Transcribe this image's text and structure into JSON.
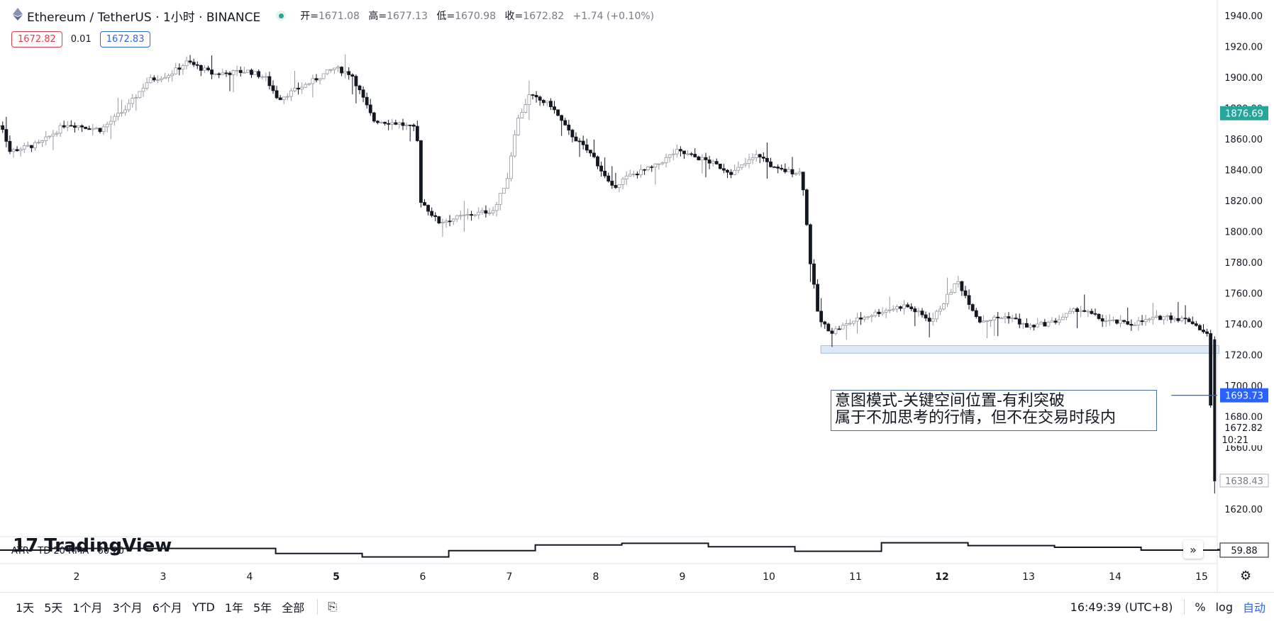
{
  "header": {
    "symbol": "Ethereum / TetherUS · 1小时 · BINANCE",
    "open_label": "开=",
    "open": "1671.08",
    "high_label": "高=",
    "high": "1677.13",
    "low_label": "低=",
    "low": "1670.98",
    "close_label": "收=",
    "close": "1672.82",
    "change": "+1.74 (+0.10%)"
  },
  "bidask": {
    "bid": "1672.82",
    "spread": "0.01",
    "ask": "1672.83"
  },
  "annotation": {
    "line1": "意图模式-关键空间位置-有利突破",
    "line2": "属于不加思考的行情，但不在交易时段内"
  },
  "logo": "TradingView",
  "indicator": {
    "label": "ATR · TD 20 RMA · 60:20",
    "value": "59.88"
  },
  "bottom": {
    "ranges": [
      "1天",
      "5天",
      "1个月",
      "3个月",
      "6个月",
      "YTD",
      "1年",
      "5年",
      "全部"
    ],
    "time": "16:49:39 (UTC+8)",
    "percent": "%",
    "log": "log",
    "auto": "自动"
  },
  "colors": {
    "accent": "#2962ff",
    "bull": "#26a69a",
    "bear": "#f23645",
    "candle_up": "#ffffff",
    "candle_down": "#131722"
  },
  "chart_data": {
    "type": "candlestick",
    "title": "Ethereum / TetherUS · 1小时 · BINANCE",
    "y_ticks": [
      "1620.00",
      "1640.00",
      "1660.00",
      "1680.00",
      "1700.00",
      "1720.00",
      "1740.00",
      "1760.00",
      "1780.00",
      "1800.00",
      "1820.00",
      "1840.00",
      "1860.00",
      "1880.00",
      "1900.00",
      "1920.00",
      "1940.00"
    ],
    "ylim": [
      1610,
      1945
    ],
    "x_ticks": [
      {
        "label": "2",
        "day": 2,
        "bold": false
      },
      {
        "label": "3",
        "day": 3,
        "bold": false
      },
      {
        "label": "4",
        "day": 4,
        "bold": false
      },
      {
        "label": "5",
        "day": 5,
        "bold": true
      },
      {
        "label": "6",
        "day": 6,
        "bold": false
      },
      {
        "label": "7",
        "day": 7,
        "bold": false
      },
      {
        "label": "8",
        "day": 8,
        "bold": false
      },
      {
        "label": "9",
        "day": 9,
        "bold": false
      },
      {
        "label": "10",
        "day": 10,
        "bold": false
      },
      {
        "label": "11",
        "day": 11,
        "bold": false
      },
      {
        "label": "12",
        "day": 12,
        "bold": true
      },
      {
        "label": "13",
        "day": 13,
        "bold": false
      },
      {
        "label": "14",
        "day": 14,
        "bold": false
      },
      {
        "label": "15",
        "day": 15,
        "bold": false
      }
    ],
    "price_path": [
      {
        "day": 1.0,
        "price": 1866
      },
      {
        "day": 1.15,
        "price": 1870
      },
      {
        "day": 1.25,
        "price": 1852
      },
      {
        "day": 1.6,
        "price": 1857
      },
      {
        "day": 1.9,
        "price": 1870
      },
      {
        "day": 2.3,
        "price": 1866
      },
      {
        "day": 2.6,
        "price": 1880
      },
      {
        "day": 2.85,
        "price": 1898
      },
      {
        "day": 3.1,
        "price": 1902
      },
      {
        "day": 3.3,
        "price": 1910
      },
      {
        "day": 3.6,
        "price": 1902
      },
      {
        "day": 4.0,
        "price": 1904
      },
      {
        "day": 4.2,
        "price": 1900
      },
      {
        "day": 4.35,
        "price": 1886
      },
      {
        "day": 4.7,
        "price": 1896
      },
      {
        "day": 5.0,
        "price": 1906
      },
      {
        "day": 5.2,
        "price": 1902
      },
      {
        "day": 5.45,
        "price": 1872
      },
      {
        "day": 5.75,
        "price": 1870
      },
      {
        "day": 5.95,
        "price": 1866
      },
      {
        "day": 6.0,
        "price": 1820
      },
      {
        "day": 6.2,
        "price": 1806
      },
      {
        "day": 6.5,
        "price": 1810
      },
      {
        "day": 6.85,
        "price": 1814
      },
      {
        "day": 7.0,
        "price": 1835
      },
      {
        "day": 7.1,
        "price": 1870
      },
      {
        "day": 7.25,
        "price": 1888
      },
      {
        "day": 7.5,
        "price": 1882
      },
      {
        "day": 7.7,
        "price": 1865
      },
      {
        "day": 8.0,
        "price": 1848
      },
      {
        "day": 8.2,
        "price": 1828
      },
      {
        "day": 8.4,
        "price": 1836
      },
      {
        "day": 8.7,
        "price": 1842
      },
      {
        "day": 8.95,
        "price": 1852
      },
      {
        "day": 9.3,
        "price": 1846
      },
      {
        "day": 9.6,
        "price": 1838
      },
      {
        "day": 9.9,
        "price": 1850
      },
      {
        "day": 10.1,
        "price": 1840
      },
      {
        "day": 10.4,
        "price": 1838
      },
      {
        "day": 10.5,
        "price": 1780
      },
      {
        "day": 10.6,
        "price": 1742
      },
      {
        "day": 10.75,
        "price": 1735
      },
      {
        "day": 11.0,
        "price": 1742
      },
      {
        "day": 11.3,
        "price": 1748
      },
      {
        "day": 11.6,
        "price": 1752
      },
      {
        "day": 11.9,
        "price": 1742
      },
      {
        "day": 12.2,
        "price": 1768
      },
      {
        "day": 12.45,
        "price": 1742
      },
      {
        "day": 12.8,
        "price": 1745
      },
      {
        "day": 13.0,
        "price": 1738
      },
      {
        "day": 13.3,
        "price": 1741
      },
      {
        "day": 13.6,
        "price": 1750
      },
      {
        "day": 13.9,
        "price": 1742
      },
      {
        "day": 14.2,
        "price": 1740
      },
      {
        "day": 14.6,
        "price": 1745
      },
      {
        "day": 14.9,
        "price": 1742
      },
      {
        "day": 15.1,
        "price": 1732
      },
      {
        "day": 15.15,
        "price": 1645
      },
      {
        "day": 15.17,
        "price": 1672.82
      }
    ],
    "support_zone": {
      "from_day": 10.6,
      "to_day": 15.2,
      "low": 1721,
      "high": 1726
    },
    "price_labels": [
      {
        "value": 1876.69,
        "text": "1876.69",
        "style": "green"
      },
      {
        "value": 1693.73,
        "text": "1693.73",
        "style": "blue"
      },
      {
        "value": 1672.82,
        "text": "1672.82",
        "style": "plain"
      },
      {
        "value": 1638.43,
        "text": "1638.43",
        "style": "box"
      }
    ],
    "countdown": "10:21",
    "horizontal_line": {
      "value": 1693.73,
      "from_day": 14.65
    },
    "atr_steps": [
      {
        "day": 1.0,
        "value": 59.5
      },
      {
        "day": 1.7,
        "value": 59.8
      },
      {
        "day": 4.3,
        "value": 58.9
      },
      {
        "day": 5.3,
        "value": 58.3
      },
      {
        "day": 6.3,
        "value": 59.4
      },
      {
        "day": 7.3,
        "value": 60.4
      },
      {
        "day": 8.3,
        "value": 60.7
      },
      {
        "day": 9.3,
        "value": 60.1
      },
      {
        "day": 10.3,
        "value": 59.3
      },
      {
        "day": 11.3,
        "value": 60.8
      },
      {
        "day": 12.3,
        "value": 60.3
      },
      {
        "day": 13.3,
        "value": 60.0
      },
      {
        "day": 14.3,
        "value": 59.5
      },
      {
        "day": 15.2,
        "value": 59.6
      }
    ],
    "atr_ylim": [
      57.5,
      61.5
    ]
  }
}
